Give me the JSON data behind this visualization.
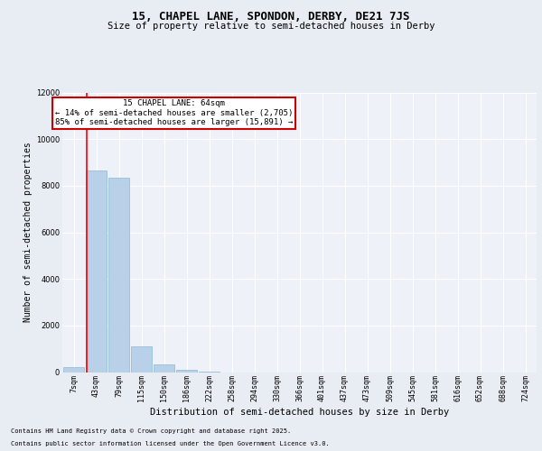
{
  "title_line1": "15, CHAPEL LANE, SPONDON, DERBY, DE21 7JS",
  "title_line2": "Size of property relative to semi-detached houses in Derby",
  "xlabel": "Distribution of semi-detached houses by size in Derby",
  "ylabel": "Number of semi-detached properties",
  "categories": [
    "7sqm",
    "43sqm",
    "79sqm",
    "115sqm",
    "150sqm",
    "186sqm",
    "222sqm",
    "258sqm",
    "294sqm",
    "330sqm",
    "366sqm",
    "401sqm",
    "437sqm",
    "473sqm",
    "509sqm",
    "545sqm",
    "581sqm",
    "616sqm",
    "652sqm",
    "688sqm",
    "724sqm"
  ],
  "bar_values": [
    200,
    8650,
    8350,
    1100,
    320,
    80,
    20,
    0,
    0,
    0,
    0,
    0,
    0,
    0,
    0,
    0,
    0,
    0,
    0,
    0,
    0
  ],
  "bar_color": "#b8d0e8",
  "bar_edge_color": "#7aaed0",
  "property_line_label": "15 CHAPEL LANE: 64sqm",
  "annotation_smaller": "← 14% of semi-detached houses are smaller (2,705)",
  "annotation_larger": "85% of semi-detached houses are larger (15,891) →",
  "annotation_box_color": "#ffffff",
  "annotation_box_edge_color": "#cc0000",
  "ylim": [
    0,
    12000
  ],
  "yticks": [
    0,
    2000,
    4000,
    6000,
    8000,
    10000,
    12000
  ],
  "bg_color": "#e8edf4",
  "plot_bg_color": "#eef2f8",
  "footer_line1": "Contains HM Land Registry data © Crown copyright and database right 2025.",
  "footer_line2": "Contains public sector information licensed under the Open Government Licence v3.0.",
  "grid_color": "#ffffff",
  "title_fontsize": 9,
  "subtitle_fontsize": 7.5,
  "tick_fontsize": 6,
  "ylabel_fontsize": 7,
  "xlabel_fontsize": 7.5,
  "annotation_fontsize": 6.5,
  "footer_fontsize": 5.0
}
